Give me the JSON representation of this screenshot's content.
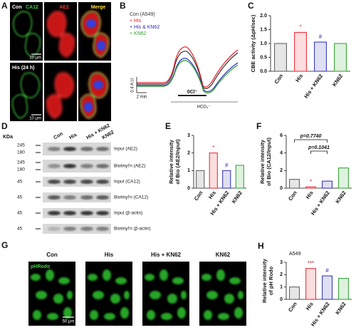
{
  "figure": {
    "A": {
      "letter": "A",
      "con": "Con",
      "ca12": "CA12",
      "ae2": "AE2",
      "merge": "Merge",
      "his": "His (24 h)",
      "scale": [
        "10 μm",
        "10 μm"
      ]
    },
    "B": {
      "letter": "B",
      "legend": [
        {
          "name": "Con (A549)",
          "color": "#333333"
        },
        {
          "name": "+ His",
          "color": "#e8202a"
        },
        {
          "name": "+ His & KN62",
          "color": "#2a2ab8"
        },
        {
          "name": "+ KN62",
          "color": "#2aa02a"
        }
      ],
      "yscale": "0.4 A.U.",
      "xscale": "2 min",
      "cl": "0Cl⁻",
      "hco3": "HCO₃⁻"
    },
    "D": {
      "letter": "D",
      "kda": "KDa",
      "lanes": [
        "Con",
        "His",
        "His + KN62",
        "KN62"
      ],
      "rows": [
        {
          "label": "Input (AE2)",
          "sizes": [
            245,
            180
          ]
        },
        {
          "label": "Biotinyl'n (AE2)",
          "sizes": [
            245,
            180
          ]
        },
        {
          "label": "Input (CA12)",
          "sizes": [
            45
          ]
        },
        {
          "label": "Biotinyl'n (CA12)",
          "sizes": [
            45
          ]
        },
        {
          "label": "Input (β-actin)",
          "sizes": [
            45
          ]
        },
        {
          "label": "Biotinyl'n (β-actin)",
          "sizes": [
            45
          ]
        }
      ]
    },
    "G": {
      "letter": "G",
      "columns": [
        "Con",
        "His",
        "His + KN62",
        "KN62"
      ],
      "stain": "pHRodo",
      "scale": "50 μm"
    }
  },
  "charts": [
    {
      "type": "bar",
      "panel": "C",
      "ylabel": [
        "CBE activity (ΔpH/sec)"
      ],
      "categories": [
        "Con",
        "His",
        "His + KN62",
        "KN62"
      ],
      "values": [
        1.0,
        1.4,
        1.05,
        1.0
      ],
      "colors": [
        "#555555",
        "#e8202a",
        "#2a2ab8",
        "#2aa02a"
      ],
      "bar_labels": [
        null,
        "*",
        "#",
        null
      ],
      "ylim": [
        0,
        2
      ],
      "yticks": [
        {
          "value": 0,
          "label": "0.0"
        },
        0.5,
        {
          "value": 1,
          "label": "1.0"
        },
        1.5,
        {
          "value": 2,
          "label": "2.0"
        }
      ]
    },
    {
      "type": "bar",
      "panel": "E",
      "ylabel": [
        "Relative intensity",
        "of Bio (AE2/Input)"
      ],
      "categories": [
        "Con",
        "His",
        "His + KN62",
        "KN62"
      ],
      "values": [
        1.0,
        2.0,
        1.0,
        1.3
      ],
      "colors": [
        "#555555",
        "#e8202a",
        "#2a2ab8",
        "#2aa02a"
      ],
      "bar_labels": [
        null,
        "*",
        "#",
        null
      ],
      "ylim": [
        0,
        3
      ],
      "yticks": [
        0,
        1,
        2,
        3
      ]
    },
    {
      "type": "bar",
      "panel": "F",
      "ylabel": [
        "Relative intensity",
        "of Bio (CA12/Input)"
      ],
      "categories": [
        "Con",
        "His",
        "His + KN62",
        "KN62"
      ],
      "values": [
        1.0,
        0.15,
        0.8,
        2.3
      ],
      "colors": [
        "#555555",
        "#e8202a",
        "#2a2ab8",
        "#2aa02a"
      ],
      "bar_labels": [
        null,
        "*",
        null,
        null
      ],
      "comparisons": [
        "p=0.7740",
        "p=0.1041"
      ],
      "ylim": [
        0,
        6
      ],
      "yticks": [
        0,
        2,
        4,
        6
      ]
    },
    {
      "type": "bar",
      "panel": "H",
      "title": "A549",
      "ylabel": [
        "Relative intensity",
        "of pH Rodo"
      ],
      "categories": [
        "Con",
        "His",
        "His + KN62",
        "KN62"
      ],
      "values": [
        1.0,
        2.5,
        1.9,
        1.7
      ],
      "colors": [
        "#555555",
        "#e8202a",
        "#2a2ab8",
        "#2aa02a"
      ],
      "bar_labels": [
        null,
        "***",
        "#",
        null
      ],
      "ylim": [
        0,
        3
      ],
      "yticks": [
        0,
        1,
        2,
        3
      ]
    }
  ]
}
